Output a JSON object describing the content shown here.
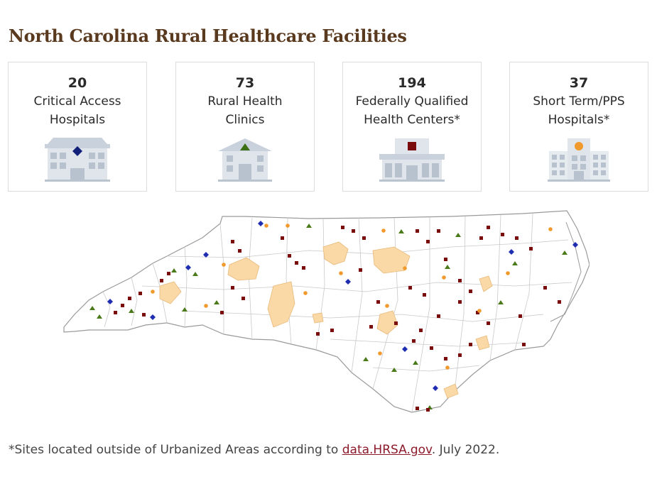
{
  "title": "North Carolina Rural Healthcare Facilities",
  "cards": [
    {
      "count": "20",
      "label": "Critical Access\nHospitals",
      "icon": "critical-access-hospital-icon",
      "marker": "diamond",
      "marker_color": "#13207a"
    },
    {
      "count": "73",
      "label": "Rural Health\nClinics",
      "icon": "rural-health-clinic-icon",
      "marker": "triangle",
      "marker_color": "#3c6e13"
    },
    {
      "count": "194",
      "label": "Federally Qualified\nHealth Centers*",
      "icon": "health-center-icon",
      "marker": "square",
      "marker_color": "#7a0c0c"
    },
    {
      "count": "37",
      "label": "Short Term/PPS\nHospitals*",
      "icon": "hospital-building-icon",
      "marker": "circle",
      "marker_color": "#f09a2e"
    }
  ],
  "map": {
    "region": "north-carolina-counties",
    "urban_area_color": "#fbd9a7",
    "county_line_color": "#b8b8b8"
  },
  "footnote": {
    "prefix": "*Sites located outside of Urbanized Areas according to ",
    "link_text": "data.HRSA.gov",
    "suffix": ". July 2022."
  }
}
